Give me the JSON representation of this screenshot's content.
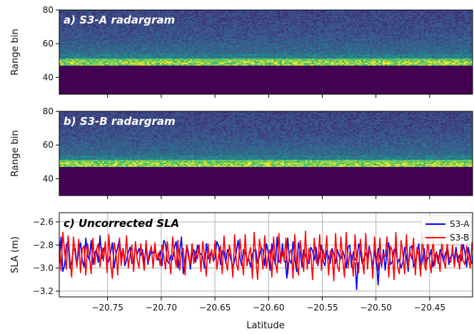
{
  "chart_data": [
    {
      "type": "heatmap",
      "title": "a) S3-A radargram",
      "ylabel": "Range bin",
      "ylim": [
        30,
        80
      ],
      "yticks": [
        40,
        60,
        80
      ],
      "xlim": [
        -20.795,
        -20.41
      ],
      "colormap": [
        "#440154",
        "#3b528b",
        "#21918c",
        "#5ec962",
        "#fde725"
      ],
      "bright_band_range_bin": 49,
      "noise_floor_below_range_bin": 47
    },
    {
      "type": "heatmap",
      "title": "b) S3-B radargram",
      "ylabel": "Range bin",
      "ylim": [
        30,
        80
      ],
      "yticks": [
        40,
        60,
        80
      ],
      "xlim": [
        -20.795,
        -20.41
      ],
      "colormap": [
        "#440154",
        "#3b528b",
        "#21918c",
        "#5ec962",
        "#fde725"
      ],
      "bright_band_range_bin": 49,
      "noise_floor_below_range_bin": 47
    },
    {
      "type": "line",
      "title": "c) Uncorrected SLA",
      "xlabel": "Latitude",
      "ylabel": "SLA (m)",
      "xlim": [
        -20.795,
        -20.41
      ],
      "ylim": [
        -3.25,
        -2.52
      ],
      "yticks": [
        -3.2,
        -3.0,
        -2.8,
        -2.6
      ],
      "xticks": [
        -20.75,
        -20.7,
        -20.65,
        -20.6,
        -20.55,
        -20.5,
        -20.45
      ],
      "xtick_labels": [
        "−20.75",
        "−20.70",
        "−20.65",
        "−20.60",
        "−20.55",
        "−20.50",
        "−20.45"
      ],
      "ytick_labels": [
        "−3.2",
        "−3.0",
        "−2.8",
        "−2.6"
      ],
      "grid": true,
      "legend_position": "top-right",
      "x_start": -20.795,
      "x_step": 0.00165,
      "series": [
        {
          "name": "S3-A",
          "color": "#0000ff",
          "values": [
            -2.96,
            -2.73,
            -3.03,
            -2.98,
            -2.8,
            -2.77,
            -3.0,
            -2.95,
            -2.84,
            -2.83,
            -2.97,
            -2.86,
            -2.78,
            -2.94,
            -2.99,
            -2.74,
            -2.89,
            -2.93,
            -2.76,
            -2.97,
            -2.87,
            -2.84,
            -2.95,
            -2.72,
            -2.92,
            -2.83,
            -2.82,
            -2.96,
            -2.94,
            -2.86,
            -2.78,
            -3.0,
            -2.88,
            -2.82,
            -2.75,
            -2.91,
            -2.83,
            -2.98,
            -2.93,
            -2.86,
            -2.82,
            -2.96,
            -2.95,
            -2.8,
            -2.88,
            -2.83,
            -2.89,
            -2.84,
            -2.96,
            -2.81,
            -2.97,
            -2.9,
            -2.85,
            -2.87,
            -2.84,
            -2.91,
            -2.93,
            -2.85,
            -2.98,
            -2.76,
            -2.79,
            -2.94,
            -2.96,
            -2.89,
            -2.93,
            -2.82,
            -2.77,
            -3.0,
            -2.86,
            -2.73,
            -3.05,
            -2.94,
            -2.8,
            -2.87,
            -3.01,
            -2.88,
            -2.84,
            -2.95,
            -2.8,
            -2.86,
            -2.88,
            -2.9,
            -3.0,
            -2.79,
            -2.92,
            -2.89,
            -2.85,
            -2.94,
            -2.91,
            -2.77,
            -2.81,
            -2.97,
            -2.85,
            -2.86,
            -2.96,
            -2.84,
            -2.87,
            -2.93,
            -3.0,
            -2.93,
            -2.86,
            -2.76,
            -2.91,
            -2.98,
            -2.84,
            -2.86,
            -2.93,
            -2.92,
            -2.99,
            -2.88,
            -2.85,
            -2.84,
            -2.96,
            -2.9,
            -2.82,
            -2.85,
            -2.98,
            -2.79,
            -2.86,
            -3.02,
            -2.79,
            -2.91,
            -2.97,
            -2.73,
            -2.95,
            -2.93,
            -2.79,
            -2.94,
            -2.95,
            -2.74,
            -2.93,
            -2.96,
            -2.77,
            -2.92,
            -3.03,
            -2.78,
            -2.86,
            -2.99,
            -2.84,
            -2.89,
            -2.94,
            -2.96,
            -2.82,
            -2.85,
            -2.93,
            -2.82,
            -2.98,
            -2.89,
            -2.8,
            -2.94,
            -2.98,
            -2.85,
            -2.9,
            -2.96,
            -2.83,
            -2.88,
            -2.96,
            -2.84,
            -2.9,
            -2.92,
            -2.85,
            -2.9,
            -3.0,
            -2.82,
            -2.8,
            -2.99,
            -2.86,
            -2.93,
            -2.93,
            -2.79,
            -2.85,
            -2.96,
            -2.92,
            -2.87,
            -2.91,
            -2.81,
            -2.89,
            -2.98,
            -2.85,
            -2.97,
            -2.83,
            -2.9,
            -2.99,
            -2.84,
            -3.02,
            -2.85,
            -2.78,
            -2.97,
            -2.95,
            -2.84,
            -2.83,
            -2.96,
            -2.92,
            -3.0,
            -2.95,
            -2.82,
            -2.9,
            -3.03,
            -2.82,
            -2.81,
            -2.99,
            -2.95,
            -2.87,
            -2.79,
            -3.0,
            -2.93,
            -2.83,
            -2.98,
            -2.91,
            -2.91,
            -2.84,
            -2.99,
            -2.9,
            -2.86,
            -2.96,
            -2.84,
            -2.88,
            -2.95,
            -2.87,
            -2.84,
            -2.97,
            -2.9,
            -2.88,
            -2.93,
            -2.82,
            -2.95,
            -2.89,
            -2.94,
            -2.79,
            -2.86,
            -2.99,
            -2.82,
            -2.93,
            -2.96,
            -2.76,
            -2.9,
            -2.93,
            -2.81,
            -2.86,
            -2.95,
            -2.93
          ],
          "highlight_points": [
            {
              "x": -20.518,
              "y": -3.19
            },
            {
              "x": -20.498,
              "y": -3.15
            },
            {
              "x": -20.583,
              "y": -3.09
            }
          ]
        },
        {
          "name": "S3-B",
          "color": "#ff0000",
          "values": [
            -2.76,
            -3.02,
            -2.69,
            -2.85,
            -3.01,
            -2.72,
            -2.92,
            -3.08,
            -2.73,
            -2.88,
            -2.99,
            -2.75,
            -3.04,
            -2.83,
            -2.81,
            -3.06,
            -2.79,
            -2.9,
            -3.05,
            -2.74,
            -2.97,
            -2.84,
            -2.79,
            -2.99,
            -2.82,
            -2.94,
            -2.77,
            -3.04,
            -2.71,
            -2.96,
            -3.09,
            -2.78,
            -2.87,
            -3.06,
            -2.74,
            -2.98,
            -2.83,
            -2.95,
            -2.72,
            -3.0,
            -2.88,
            -2.8,
            -3.03,
            -2.77,
            -2.93,
            -3.0,
            -2.79,
            -2.9,
            -3.02,
            -2.76,
            -2.95,
            -2.86,
            -2.81,
            -3.0,
            -2.78,
            -2.93,
            -2.87,
            -2.98,
            -2.8,
            -2.89,
            -3.01,
            -2.77,
            -2.92,
            -3.05,
            -2.73,
            -2.88,
            -2.99,
            -2.76,
            -3.02,
            -2.86,
            -2.83,
            -3.06,
            -2.8,
            -2.91,
            -2.97,
            -2.79,
            -2.96,
            -2.85,
            -2.92,
            -2.8,
            -3.03,
            -2.77,
            -2.9,
            -3.07,
            -2.79,
            -2.96,
            -2.84,
            -2.93,
            -2.76,
            -3.01,
            -2.89,
            -2.81,
            -3.05,
            -2.72,
            -2.94,
            -3.02,
            -2.8,
            -2.88,
            -3.08,
            -2.71,
            -2.96,
            -3.02,
            -2.75,
            -2.91,
            -3.06,
            -2.71,
            -2.98,
            -2.89,
            -2.82,
            -3.09,
            -2.69,
            -2.92,
            -3.1,
            -2.75,
            -2.85,
            -3.01,
            -2.72,
            -3.0,
            -2.89,
            -2.84,
            -3.08,
            -2.73,
            -2.95,
            -3.04,
            -2.7,
            -2.96,
            -2.86,
            -2.93,
            -2.74,
            -3.05,
            -2.87,
            -2.84,
            -3.09,
            -2.71,
            -2.97,
            -3.06,
            -2.76,
            -2.89,
            -3.03,
            -2.68,
            -3.01,
            -2.83,
            -2.88,
            -3.1,
            -2.74,
            -2.95,
            -2.97,
            -2.71,
            -3.02,
            -2.84,
            -2.93,
            -2.72,
            -3.06,
            -2.85,
            -2.87,
            -3.11,
            -2.7,
            -2.98,
            -3.03,
            -2.73,
            -2.92,
            -3.08,
            -2.69,
            -3.0,
            -2.86,
            -2.89,
            -3.07,
            -2.71,
            -2.96,
            -3.04,
            -2.75,
            -2.91,
            -3.05,
            -2.7,
            -3.01,
            -2.83,
            -2.87,
            -3.09,
            -2.73,
            -2.94,
            -3.02,
            -2.74,
            -2.98,
            -2.88,
            -2.9,
            -2.73,
            -3.08,
            -2.81,
            -2.85,
            -3.1,
            -2.69,
            -2.99,
            -3.05,
            -2.76,
            -2.88,
            -3.05,
            -2.71,
            -3.0,
            -2.86,
            -2.92,
            -2.74,
            -3.06,
            -2.82,
            -2.89,
            -3.07,
            -2.7,
            -2.97,
            -3.02,
            -2.75,
            -2.93,
            -3.04,
            -2.72,
            -2.98,
            -2.87,
            -2.9,
            -3.03,
            -2.76,
            -2.93,
            -3.0,
            -2.78,
            -2.91,
            -2.95,
            -2.8,
            -2.99,
            -2.86,
            -2.89,
            -3.01,
            -2.79,
            -2.94,
            -2.97,
            -2.81,
            -2.92,
            -3.0,
            -2.78,
            -2.96,
            -2.88,
            -2.93,
            -2.76,
            -3.04,
            -2.84,
            -2.9,
            -2.94,
            -2.85,
            -2.98,
            -2.82,
            -2.91,
            -2.96,
            -2.84
          ]
        }
      ]
    }
  ]
}
